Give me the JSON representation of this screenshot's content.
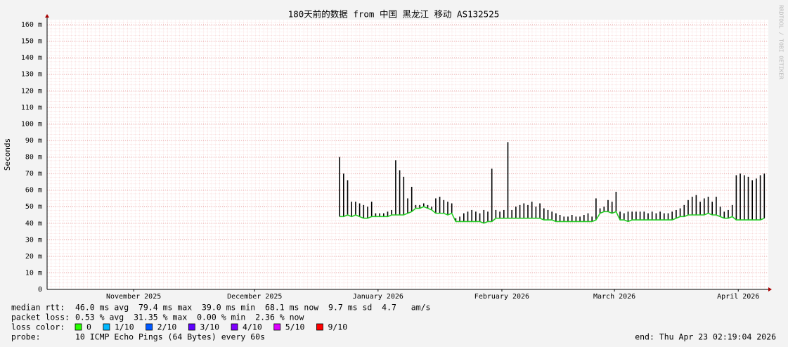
{
  "chart_data": {
    "type": "smoke",
    "title": "180天前的数据 from  中国 黑龙江 移动 AS132525",
    "y_label": "Seconds",
    "side_text": "RRDTOOL / TOBI OETIKER",
    "xlim": [
      0,
      180
    ],
    "xticks": [
      {
        "value": 21.6,
        "label": "November 2025"
      },
      {
        "value": 51.8,
        "label": "December 2025"
      },
      {
        "value": 82.6,
        "label": "January 2026"
      },
      {
        "value": 113.5,
        "label": "February 2026"
      },
      {
        "value": 141.6,
        "label": "March 2026"
      },
      {
        "value": 172.5,
        "label": "April 2026"
      }
    ],
    "ylim": [
      0,
      163
    ],
    "yticks": [
      0,
      {
        "value": 10,
        "label": "10 m"
      },
      {
        "value": 20,
        "label": "20 m"
      },
      {
        "value": 30,
        "label": "30 m"
      },
      {
        "value": 40,
        "label": "40 m"
      },
      {
        "value": 50,
        "label": "50 m"
      },
      {
        "value": 60,
        "label": "60 m"
      },
      {
        "value": 70,
        "label": "70 m"
      },
      {
        "value": 80,
        "label": "80 m"
      },
      {
        "value": 90,
        "label": "90 m"
      },
      {
        "value": 100,
        "label": "100 m"
      },
      {
        "value": 110,
        "label": "110 m"
      },
      {
        "value": 120,
        "label": "120 m"
      },
      {
        "value": 130,
        "label": "130 m"
      },
      {
        "value": 140,
        "label": "140 m"
      },
      {
        "value": 150,
        "label": "150 m"
      },
      {
        "value": 160,
        "label": "160 m"
      }
    ],
    "grid": true,
    "x": [
      73,
      74,
      75,
      76,
      77,
      78,
      79,
      80,
      81,
      82,
      83,
      84,
      85,
      86,
      87,
      88,
      89,
      90,
      91,
      92,
      93,
      94,
      95,
      96,
      97,
      98,
      99,
      100,
      101,
      102,
      103,
      104,
      105,
      106,
      107,
      108,
      109,
      110,
      111,
      112,
      113,
      114,
      115,
      116,
      117,
      118,
      119,
      120,
      121,
      122,
      123,
      124,
      125,
      126,
      127,
      128,
      129,
      130,
      131,
      132,
      133,
      134,
      135,
      136,
      137,
      138,
      139,
      140,
      141,
      142,
      143,
      144,
      145,
      146,
      147,
      148,
      149,
      150,
      151,
      152,
      153,
      154,
      155,
      156,
      157,
      158,
      159,
      160,
      161,
      162,
      163,
      164,
      165,
      166,
      167,
      168,
      169,
      170,
      171,
      172,
      173,
      174,
      175,
      176,
      177,
      178,
      179
    ],
    "series": [
      {
        "name": "median rtt:",
        "color": "#22cc22",
        "values": [
          44,
          44,
          45,
          44,
          45,
          44,
          43,
          43,
          44,
          44,
          44,
          44,
          44,
          45,
          45,
          45,
          45,
          46,
          47,
          49,
          49,
          50,
          49,
          48,
          46,
          46,
          46,
          45,
          46,
          41,
          41,
          41,
          41,
          41,
          41,
          41,
          40,
          41,
          41,
          43,
          43,
          43,
          43,
          43,
          43,
          43,
          43,
          43,
          43,
          43,
          43,
          42,
          42,
          42,
          41,
          41,
          41,
          41,
          41,
          41,
          41,
          41,
          41,
          41,
          42,
          46,
          47,
          47,
          46,
          47,
          42,
          42,
          41,
          42,
          42,
          42,
          42,
          42,
          42,
          42,
          42,
          42,
          42,
          42,
          43,
          44,
          44,
          45,
          45,
          45,
          45,
          45,
          46,
          45,
          45,
          44,
          43,
          43,
          44,
          42,
          42,
          42,
          42,
          42,
          42,
          42,
          43
        ]
      },
      {
        "color": "#000000",
        "values": [
          80,
          70,
          66,
          53,
          53,
          52,
          51,
          50,
          53,
          46,
          46,
          46,
          47,
          48,
          78,
          72,
          68,
          55,
          62,
          51,
          51,
          52,
          51,
          50,
          55,
          56,
          54,
          53,
          52,
          43,
          44,
          46,
          47,
          48,
          47,
          46,
          48,
          47,
          73,
          48,
          47,
          48,
          89,
          48,
          50,
          51,
          52,
          51,
          53,
          50,
          52,
          49,
          48,
          47,
          46,
          45,
          44,
          44,
          45,
          44,
          44,
          45,
          46,
          44,
          55,
          49,
          50,
          54,
          53,
          59,
          47,
          46,
          47,
          47,
          47,
          47,
          47,
          46,
          47,
          46,
          47,
          46,
          46,
          47,
          48,
          49,
          51,
          54,
          56,
          57,
          53,
          55,
          56,
          53,
          56,
          50,
          47,
          48,
          51,
          69,
          70,
          69,
          68,
          66,
          67,
          69,
          70
        ]
      }
    ],
    "loss_label": "loss color:",
    "loss_colors": [
      {
        "name": "0",
        "color": "#26ff00"
      },
      {
        "name": "1/10",
        "color": "#00b8ff"
      },
      {
        "name": "2/10",
        "color": "#0059ff"
      },
      {
        "name": "3/10",
        "color": "#5e00ff"
      },
      {
        "name": "4/10",
        "color": "#7e00ff"
      },
      {
        "name": "5/10",
        "color": "#dd00ff"
      },
      {
        "name": "9/10",
        "color": "#ff0000"
      }
    ],
    "median_stats": "46.0 ms avg  79.4 ms max  39.0 ms min  68.1 ms now  9.7 ms sd  4.7   am/s",
    "loss_stats_label": "packet loss:",
    "loss_stats": "0.53 % avg  31.35 % max  0.00 % min  2.36 % now",
    "probe_label": "probe:",
    "probe": "10 ICMP Echo Pings (64 Bytes) every 60s",
    "end": "end: Thu Apr 23 02:19:04 2026"
  }
}
